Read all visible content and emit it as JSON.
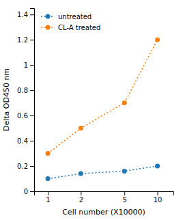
{
  "chart_data": {
    "type": "line",
    "x": [
      1,
      2,
      5,
      10
    ],
    "series": [
      {
        "name": "untreated",
        "values": [
          0.1,
          0.14,
          0.16,
          0.2
        ]
      },
      {
        "name": "CL-A treated",
        "values": [
          0.3,
          0.5,
          0.7,
          1.2
        ]
      }
    ],
    "xlabel": "Cell number (X10000)",
    "ylabel": "Delta OD450 nm",
    "log": "x",
    "xlim": [
      0.75,
      14
    ],
    "xticks": [
      1,
      2,
      5,
      10
    ],
    "ylim": [
      0,
      1.45
    ],
    "yticks": [
      0,
      0.2,
      0.4,
      0.6,
      0.8,
      1,
      1.2,
      1.4
    ],
    "grid": false,
    "legend": "upper left",
    "marker": "circle",
    "line_style": "dotted"
  }
}
